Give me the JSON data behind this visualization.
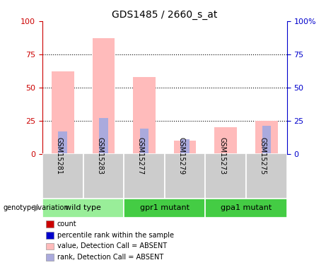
{
  "title": "GDS1485 / 2660_s_at",
  "samples": [
    "GSM15281",
    "GSM15283",
    "GSM15277",
    "GSM15279",
    "GSM15273",
    "GSM15275"
  ],
  "absent_value_bars": [
    62,
    87,
    58,
    10,
    20,
    25
  ],
  "absent_rank_bars": [
    17,
    27,
    19,
    11,
    0,
    21
  ],
  "bar_color_value": "#ffbbbb",
  "bar_color_rank": "#aaaadd",
  "ylim": [
    0,
    100
  ],
  "yticks": [
    0,
    25,
    50,
    75,
    100
  ],
  "left_axis_color": "#cc0000",
  "right_axis_color": "#0000cc",
  "plot_bg": "#ffffff",
  "sample_box_color": "#cccccc",
  "group_info": [
    {
      "name": "wild type",
      "start": 0,
      "end": 1,
      "color": "#99ee99"
    },
    {
      "name": "gpr1 mutant",
      "start": 2,
      "end": 3,
      "color": "#44cc44"
    },
    {
      "name": "gpa1 mutant",
      "start": 4,
      "end": 5,
      "color": "#44cc44"
    }
  ],
  "legend_items": [
    {
      "label": "count",
      "color": "#cc0000"
    },
    {
      "label": "percentile rank within the sample",
      "color": "#0000cc"
    },
    {
      "label": "value, Detection Call = ABSENT",
      "color": "#ffbbbb"
    },
    {
      "label": "rank, Detection Call = ABSENT",
      "color": "#aaaadd"
    }
  ],
  "genotype_label": "genotype/variation"
}
